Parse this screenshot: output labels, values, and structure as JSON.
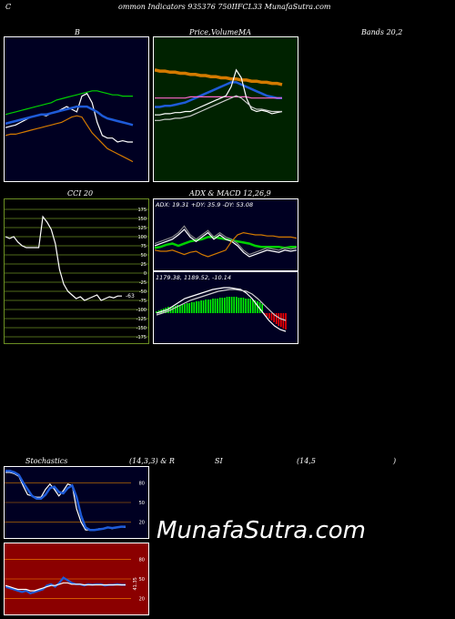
{
  "header": {
    "c_letter": "C",
    "title": "ommon  Indicators 935376  750IIFCL33 MunafaSutra.com"
  },
  "labels": {
    "b": "B",
    "price_a": "Price,",
    "price_b": "Volume,",
    "price_c": "MA",
    "bands": "Bands 20,2",
    "cci": "CCI 20",
    "adx_macd": "ADX  & MACD 12,26,9",
    "stoch_a": "Stochastics",
    "stoch_b": "(14,3,3) & R",
    "rsi_a": "SI",
    "rsi_b": "(14,5",
    "rsi_c": ")"
  },
  "watermark": "MunafaSutra.com",
  "colors": {
    "navy": "#000022",
    "dark_green": "#002200",
    "cci_bg": "#000000",
    "rsi_bg": "#8b0000",
    "grid_cci": "#6b8e23",
    "blue": "#1e5bd8",
    "green": "#00d000",
    "bright_green": "#00ff00",
    "orange": "#d47a00",
    "white": "#ffffff",
    "red": "#ff0000",
    "pink": "#ff66cc"
  },
  "chart_data": [
    {
      "id": "bollinger",
      "type": "line",
      "series": [
        {
          "color": "#ffffff",
          "values": [
            36,
            37,
            38,
            40,
            42,
            44,
            45,
            46,
            45,
            47,
            48,
            50,
            52,
            50,
            48,
            60,
            62,
            55,
            40,
            30,
            28,
            28,
            25,
            26,
            25,
            25
          ]
        },
        {
          "color": "#1e5bd8",
          "values": [
            39,
            40,
            41,
            42,
            43,
            44,
            45,
            46,
            46,
            47,
            48,
            49,
            50,
            51,
            52,
            52,
            52,
            50,
            48,
            45,
            43,
            42,
            41,
            40,
            39,
            38
          ]
        },
        {
          "color": "#00d000",
          "values": [
            46,
            47,
            48,
            49,
            50,
            51,
            52,
            53,
            54,
            55,
            57,
            58,
            59,
            60,
            61,
            62,
            63,
            64,
            64,
            63,
            62,
            61,
            61,
            60,
            60,
            60
          ]
        },
        {
          "color": "#d47a00",
          "values": [
            30,
            31,
            31,
            32,
            33,
            34,
            35,
            36,
            37,
            38,
            39,
            40,
            42,
            44,
            45,
            44,
            38,
            32,
            28,
            24,
            20,
            18,
            16,
            14,
            12,
            10
          ]
        }
      ],
      "ylim": [
        0,
        100
      ]
    },
    {
      "id": "price_ma",
      "type": "line",
      "series": [
        {
          "color": "#d47a00",
          "values": [
            95,
            94,
            94,
            93,
            93,
            92,
            92,
            91,
            91,
            90,
            90,
            89,
            89,
            88,
            88,
            87,
            87,
            86,
            86,
            85,
            85,
            84,
            84,
            83,
            83,
            82
          ]
        },
        {
          "color": "#1e5bd8",
          "values": [
            62,
            62,
            63,
            63,
            64,
            65,
            66,
            68,
            70,
            72,
            74,
            76,
            78,
            80,
            82,
            84,
            84,
            82,
            80,
            78,
            76,
            74,
            72,
            71,
            70,
            70
          ]
        },
        {
          "color": "#ff66cc",
          "values": [
            70,
            70,
            70,
            70,
            70,
            70,
            70,
            71,
            71,
            71,
            71,
            71,
            71,
            71,
            71,
            71,
            71,
            71,
            71,
            70,
            70,
            70,
            70,
            70,
            70,
            70
          ]
        },
        {
          "color": "#ffffff",
          "values": [
            55,
            55,
            56,
            56,
            57,
            57,
            58,
            58,
            60,
            62,
            64,
            66,
            68,
            70,
            72,
            80,
            95,
            88,
            70,
            60,
            58,
            59,
            58,
            56,
            57,
            58
          ]
        },
        {
          "color": "#cccccc",
          "values": [
            50,
            50,
            51,
            51,
            52,
            52,
            53,
            54,
            56,
            58,
            60,
            62,
            64,
            66,
            68,
            70,
            72,
            70,
            66,
            62,
            60,
            60,
            59,
            58,
            58,
            58
          ]
        }
      ],
      "ylim": [
        0,
        120
      ]
    },
    {
      "id": "cci",
      "type": "line",
      "ticks": [
        175,
        150,
        125,
        100,
        75,
        50,
        25,
        0,
        -25,
        -50,
        -75,
        -100,
        -125,
        -150,
        -175
      ],
      "last_label": "-63",
      "series": [
        {
          "color": "#ffffff",
          "values": [
            100,
            95,
            100,
            85,
            75,
            70,
            70,
            70,
            70,
            155,
            140,
            120,
            80,
            10,
            -30,
            -50,
            -60,
            -70,
            -65,
            -75,
            -70,
            -65,
            -60,
            -75,
            -70,
            -65,
            -68,
            -63,
            -63
          ]
        }
      ],
      "ylim": [
        -175,
        175
      ]
    },
    {
      "id": "adx",
      "type": "line",
      "header_text": "ADX: 19.31  +DY: 35.9  -DY: 53.08",
      "series": [
        {
          "color": "#00d000",
          "values": [
            18,
            19,
            21,
            22,
            20,
            22,
            24,
            25,
            26,
            28,
            28,
            27,
            26,
            25,
            24,
            23,
            22,
            20,
            19,
            19,
            19,
            19,
            18,
            19,
            19
          ]
        },
        {
          "color": "#ffffff",
          "values": [
            20,
            22,
            24,
            26,
            30,
            35,
            28,
            24,
            28,
            32,
            26,
            30,
            26,
            24,
            20,
            14,
            10,
            12,
            14,
            16,
            15,
            14,
            16,
            15,
            16
          ]
        },
        {
          "color": "#888888",
          "values": [
            22,
            24,
            26,
            28,
            32,
            38,
            30,
            26,
            30,
            34,
            28,
            32,
            28,
            26,
            22,
            16,
            12,
            14,
            16,
            18,
            17,
            16,
            18,
            17,
            18
          ]
        },
        {
          "color": "#d47a00",
          "values": [
            16,
            15,
            15,
            16,
            14,
            12,
            14,
            15,
            12,
            10,
            12,
            14,
            16,
            24,
            30,
            32,
            31,
            30,
            30,
            29,
            29,
            28,
            28,
            28,
            27
          ]
        }
      ],
      "ylim": [
        0,
        50
      ]
    },
    {
      "id": "macd",
      "type": "line",
      "header_text": "1179.38,  1189.52,  -10.14",
      "histogram": {
        "values": [
          2,
          3,
          4,
          5,
          6,
          7,
          7,
          8,
          8,
          9,
          9,
          10,
          10,
          11,
          11,
          12,
          12,
          13,
          13,
          14,
          14,
          15,
          15,
          15,
          16,
          16,
          16,
          17,
          17,
          17,
          18,
          18,
          18,
          18,
          18,
          17,
          17,
          17,
          16,
          16,
          16,
          15,
          14,
          13,
          12,
          10,
          -2,
          -4,
          -6,
          -8,
          -10,
          -12,
          -14,
          -15,
          -17,
          -18
        ],
        "pos_color": "#00ff00",
        "neg_color": "#ff0000"
      },
      "series": [
        {
          "color": "#ffffff",
          "values": [
            0,
            2,
            4,
            8,
            12,
            16,
            18,
            20,
            22,
            24,
            26,
            27,
            28,
            28,
            27,
            26,
            22,
            16,
            8,
            0,
            -8,
            -14,
            -18,
            -20
          ]
        },
        {
          "color": "#cccccc",
          "values": [
            -2,
            0,
            2,
            5,
            8,
            11,
            14,
            16,
            18,
            20,
            22,
            24,
            25,
            26,
            26,
            25,
            24,
            21,
            16,
            10,
            4,
            -2,
            -6,
            -8
          ]
        }
      ],
      "ylim": [
        -28,
        32
      ]
    },
    {
      "id": "stochastics",
      "type": "line",
      "ticks": [
        80,
        50,
        20
      ],
      "series": [
        {
          "color": "#ffffff",
          "values": [
            96,
            96,
            94,
            90,
            75,
            62,
            60,
            58,
            58,
            70,
            78,
            70,
            60,
            68,
            78,
            76,
            40,
            20,
            8,
            8,
            8,
            10,
            10,
            12,
            10,
            12,
            13,
            12
          ]
        },
        {
          "color": "#1e5bd8",
          "values": [
            98,
            98,
            96,
            92,
            80,
            70,
            60,
            56,
            56,
            62,
            72,
            74,
            66,
            64,
            72,
            76,
            58,
            30,
            12,
            8,
            8,
            9,
            10,
            12,
            11,
            12,
            13,
            13
          ]
        }
      ],
      "ylim": [
        0,
        100
      ]
    },
    {
      "id": "rsi",
      "type": "line",
      "ticks": [
        80,
        50,
        20
      ],
      "side_label": "41.35",
      "series": [
        {
          "color": "#1e5bd8",
          "values": [
            38,
            36,
            34,
            32,
            30,
            32,
            28,
            30,
            32,
            34,
            40,
            42,
            38,
            44,
            52,
            48,
            44,
            42,
            42,
            40,
            42,
            41,
            42,
            42,
            40,
            41,
            41,
            42,
            41,
            41
          ]
        },
        {
          "color": "#ffffff",
          "values": [
            40,
            38,
            36,
            34,
            34,
            34,
            32,
            32,
            34,
            36,
            38,
            40,
            40,
            42,
            44,
            44,
            42,
            42,
            42,
            41,
            41,
            41,
            41,
            41,
            41,
            41,
            41,
            41,
            41,
            41
          ]
        }
      ],
      "ylim": [
        0,
        100
      ]
    }
  ]
}
